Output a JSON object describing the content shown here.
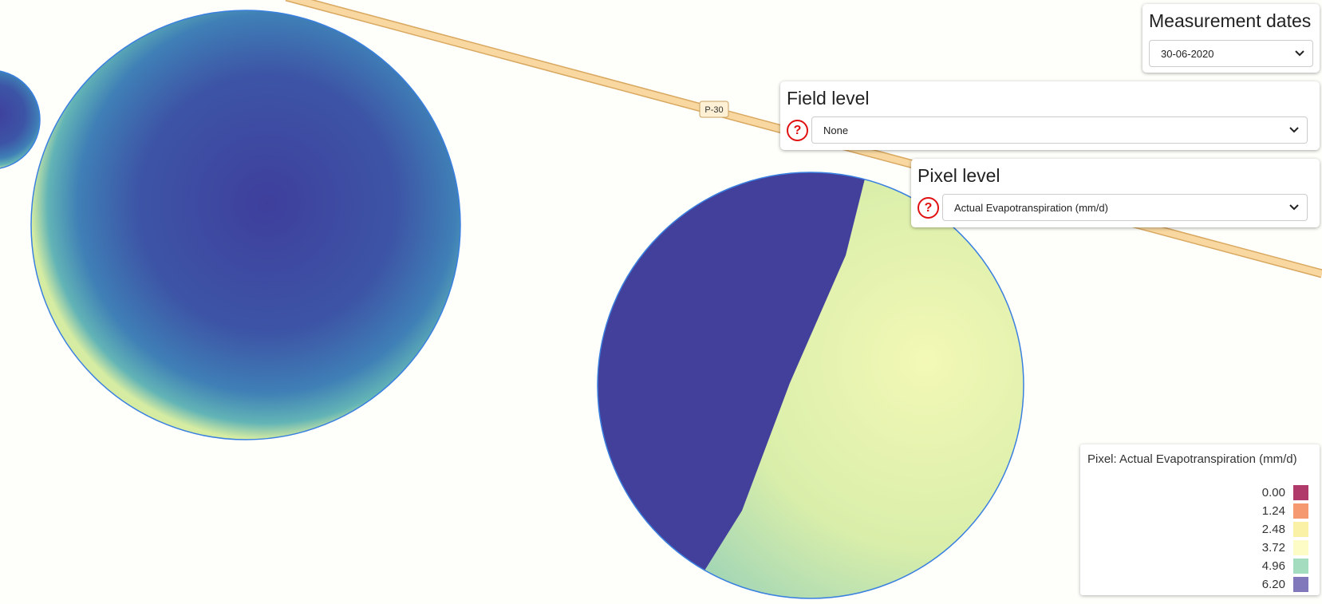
{
  "map": {
    "road_label": "P-30"
  },
  "panels": [
    {
      "title": "Measurement dates",
      "selected": "30-06-2020"
    },
    {
      "title": "Field level",
      "selected": "None"
    },
    {
      "title": "Pixel level",
      "selected": "Actual Evapotranspiration (mm/d)"
    }
  ],
  "legend": {
    "title": "Pixel: Actual Evapotranspiration (mm/d)",
    "items": [
      {
        "label": "0.00",
        "color": "#b03a6a"
      },
      {
        "label": "1.24",
        "color": "#f59a70"
      },
      {
        "label": "2.48",
        "color": "#fbf1a6"
      },
      {
        "label": "3.72",
        "color": "#fefcc6"
      },
      {
        "label": "4.96",
        "color": "#a4dcc0"
      },
      {
        "label": "6.20",
        "color": "#8178bc"
      }
    ]
  }
}
